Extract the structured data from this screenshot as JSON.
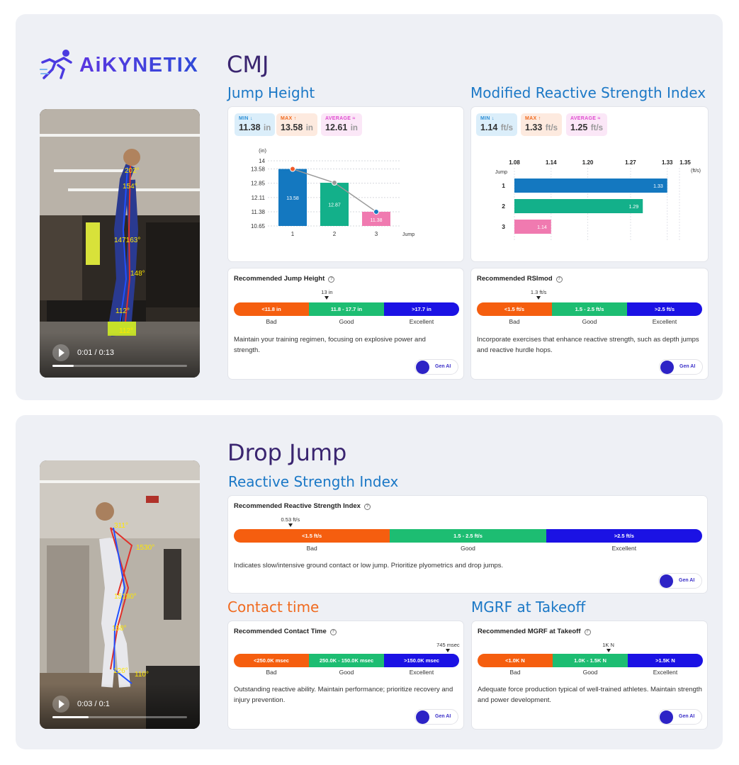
{
  "brand": {
    "name": "AiKYNETIX"
  },
  "colors": {
    "accent": "#3d2fd6",
    "min": "#2d8fd6",
    "max": "#f06a1f",
    "average": "#e04bd0",
    "bad": "#f55e0f",
    "good": "#1dbd72",
    "excellent": "#1b12e4"
  },
  "cmj": {
    "title": "CMJ",
    "video": {
      "time": "0:01 / 0:13",
      "progress_pct": 16
    },
    "jump_height": {
      "title": "Jump Height",
      "min": {
        "label": "MIN",
        "value": "11.38",
        "unit": "in"
      },
      "max": {
        "label": "MAX",
        "value": "13.58",
        "unit": "in"
      },
      "avg": {
        "label": "AVERAGE",
        "value": "12.61",
        "unit": "in"
      }
    },
    "rsimod": {
      "title": "Modified Reactive Strength Index",
      "min": {
        "label": "MIN",
        "value": "1.14",
        "unit": "ft/s"
      },
      "max": {
        "label": "MAX",
        "value": "1.33",
        "unit": "ft/s"
      },
      "avg": {
        "label": "AVERAGE",
        "value": "1.25",
        "unit": "ft/s"
      }
    },
    "rec_jump_height": {
      "title": "Recommended Jump Height",
      "marker": "13 in",
      "marker_pct": 42,
      "segments": [
        "<11.8 in",
        "11.8 - 17.7 in",
        ">17.7 in"
      ],
      "labels": [
        "Bad",
        "Good",
        "Excellent"
      ],
      "text": "Maintain your training regimen, focusing on explosive power and strength."
    },
    "rec_rsimod": {
      "title": "Recommended RSImod",
      "marker": "1.3 ft/s",
      "marker_pct": 27,
      "segments": [
        "<1.5 ft/s",
        "1.5 - 2.5 ft/s",
        ">2.5 ft/s"
      ],
      "labels": [
        "Bad",
        "Good",
        "Excellent"
      ],
      "text": "Incorporate exercises that enhance reactive strength, such as depth jumps and reactive hurdle hops."
    }
  },
  "drop_jump": {
    "title": "Drop Jump",
    "video": {
      "time": "0:03 / 0:1",
      "progress_pct": 27
    },
    "rsi_title": "Reactive Strength Index",
    "rec_rsi": {
      "title": "Recommended Reactive Strength Index",
      "marker": "0.53 ft/s",
      "marker_pct": 12,
      "segments": [
        "<1.5 ft/s",
        "1.5 - 2.5 ft/s",
        ">2.5 ft/s"
      ],
      "labels": [
        "Bad",
        "Good",
        "Excellent"
      ],
      "text": "Indicates slow/intensive ground contact or low jump. Prioritize plyometrics and drop jumps."
    },
    "contact_title": "Contact time",
    "rec_contact": {
      "title": "Recommended Contact Time",
      "marker": "745 msec",
      "marker_pct": 96,
      "segments": [
        "<250.0K msec",
        "250.0K - 150.0K msec",
        ">150.0K msec"
      ],
      "labels": [
        "Bad",
        "Good",
        "Excellent"
      ],
      "text": "Outstanding reactive ability. Maintain performance; prioritize recovery and injury prevention."
    },
    "mgrf_title": "MGRF at Takeoff",
    "rec_mgrf": {
      "title": "Recommended MGRF at Takeoff",
      "marker": "1K N",
      "marker_pct": 58,
      "segments": [
        "<1.0K N",
        "1.0K - 1.5K N",
        ">1.5K N"
      ],
      "labels": [
        "Bad",
        "Good",
        "Excellent"
      ],
      "text": "Adequate force production typical of well-trained athletes. Maintain strength and power development."
    }
  },
  "genai_label": "Gen AI",
  "chart_data": [
    {
      "type": "bar",
      "categories": [
        "1",
        "2",
        "3"
      ],
      "values": [
        13.58,
        12.87,
        11.38
      ],
      "data_labels": [
        "13.58",
        "12.87",
        "11.38"
      ],
      "ylabel": "(in)",
      "xlabel": "Jump",
      "yticks": [
        "14",
        "13.58",
        "12.85",
        "12.11",
        "11.38",
        "10.65"
      ],
      "ytick_values": [
        14,
        13.58,
        12.85,
        12.11,
        11.38,
        10.65
      ],
      "ylim": [
        10.65,
        14
      ],
      "colors": [
        "#1478c0",
        "#13b08a",
        "#f07ab0"
      ],
      "line_overlay": true
    },
    {
      "type": "bar",
      "orientation": "horizontal",
      "categories": [
        "1",
        "2",
        "3"
      ],
      "values": [
        1.33,
        1.29,
        1.14
      ],
      "data_labels": [
        "1.33",
        "1.29",
        "1.14"
      ],
      "xlabel": "(ft/s)",
      "ylabel": "Jump",
      "xticks": [
        "1.08",
        "1.14",
        "1.20",
        "1.27",
        "1.33",
        "1.35"
      ],
      "xtick_values": [
        1.08,
        1.14,
        1.2,
        1.27,
        1.33,
        1.35
      ],
      "xlim": [
        1.08,
        1.35
      ],
      "colors": [
        "#1478c0",
        "#13b08a",
        "#f07ab0"
      ]
    }
  ]
}
